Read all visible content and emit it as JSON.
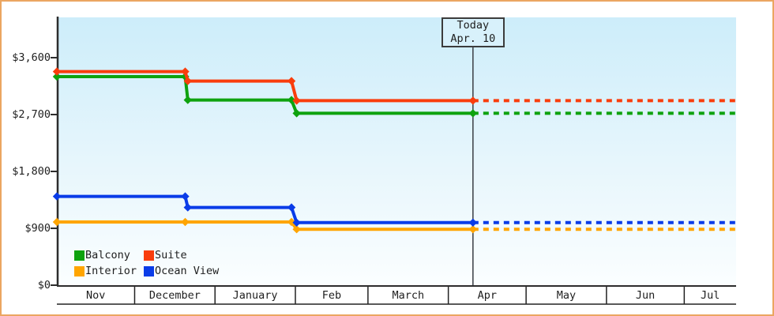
{
  "chart_data": {
    "type": "line",
    "style": "step-price-history",
    "title": "",
    "grid": false,
    "projection_style": "dashed-after-today",
    "y_axis": {
      "ticks": [
        {
          "label": "$3,600",
          "value": 3600
        },
        {
          "label": "$2,700",
          "value": 2700
        },
        {
          "label": "$1,800",
          "value": 1800
        },
        {
          "label": "$900",
          "value": 900
        },
        {
          "label": "$0",
          "value": 0
        }
      ],
      "range": [
        0,
        4250
      ]
    },
    "x_axis": {
      "months": [
        {
          "label": "Nov",
          "days": 30
        },
        {
          "label": "December",
          "days": 31
        },
        {
          "label": "January",
          "days": 31
        },
        {
          "label": "Feb",
          "days": 28
        },
        {
          "label": "March",
          "days": 31
        },
        {
          "label": "Apr",
          "days": 30
        },
        {
          "label": "May",
          "days": 31
        },
        {
          "label": "Jun",
          "days": 30
        },
        {
          "label": "Jul",
          "days": 20
        }
      ]
    },
    "today": {
      "line1": "Today",
      "line2": "Apr. 10",
      "month": "Apr",
      "day": 10
    },
    "series": [
      {
        "name": "Suite",
        "color": "#f93d0c",
        "projected_value": 2920,
        "points": [
          {
            "month": "Nov",
            "day": 0,
            "value": 3380
          },
          {
            "month": "December",
            "day": 20,
            "value": 3380
          },
          {
            "month": "December",
            "day": 21,
            "value": 3230
          },
          {
            "month": "January",
            "day": 30,
            "value": 3230
          },
          {
            "month": "Feb",
            "day": 1,
            "value": 2920
          },
          {
            "month": "Apr",
            "day": 10,
            "value": 2920
          }
        ]
      },
      {
        "name": "Balcony",
        "color": "#0ea20e",
        "projected_value": 2720,
        "points": [
          {
            "month": "Nov",
            "day": 0,
            "value": 3300
          },
          {
            "month": "December",
            "day": 20,
            "value": 3300
          },
          {
            "month": "December",
            "day": 21,
            "value": 2930
          },
          {
            "month": "January",
            "day": 30,
            "value": 2930
          },
          {
            "month": "Feb",
            "day": 1,
            "value": 2720
          },
          {
            "month": "Apr",
            "day": 10,
            "value": 2720
          }
        ]
      },
      {
        "name": "Ocean View",
        "color": "#0a3ce8",
        "projected_value": 990,
        "points": [
          {
            "month": "Nov",
            "day": 0,
            "value": 1405
          },
          {
            "month": "December",
            "day": 20,
            "value": 1405
          },
          {
            "month": "December",
            "day": 21,
            "value": 1230
          },
          {
            "month": "January",
            "day": 30,
            "value": 1230
          },
          {
            "month": "Feb",
            "day": 1,
            "value": 990
          },
          {
            "month": "Apr",
            "day": 10,
            "value": 990
          }
        ]
      },
      {
        "name": "Interior",
        "color": "#ffa500",
        "projected_value": 885,
        "points": [
          {
            "month": "Nov",
            "day": 0,
            "value": 1000
          },
          {
            "month": "December",
            "day": 20,
            "value": 1000
          },
          {
            "month": "January",
            "day": 30,
            "value": 1000
          },
          {
            "month": "Feb",
            "day": 1,
            "value": 885
          },
          {
            "month": "Apr",
            "day": 10,
            "value": 885
          }
        ]
      }
    ],
    "legend": {
      "position": "bottom-left-inside",
      "rows": [
        [
          {
            "name": "Balcony",
            "color": "#0ea20e"
          },
          {
            "name": "Suite",
            "color": "#f93d0c"
          }
        ],
        [
          {
            "name": "Interior",
            "color": "#ffa500"
          },
          {
            "name": "Ocean View",
            "color": "#0a3ce8"
          }
        ]
      ]
    }
  },
  "colors": {
    "window_border": "#eba661",
    "axis": "#2d2d2d",
    "text": "#1e1e1e",
    "today_line": "#44484e",
    "today_box_border": "#3c3c3c",
    "today_box_bg": "#d8f1fb",
    "plot_bg_top": "#cdedfa",
    "plot_bg_bottom": "#fbfeff"
  }
}
